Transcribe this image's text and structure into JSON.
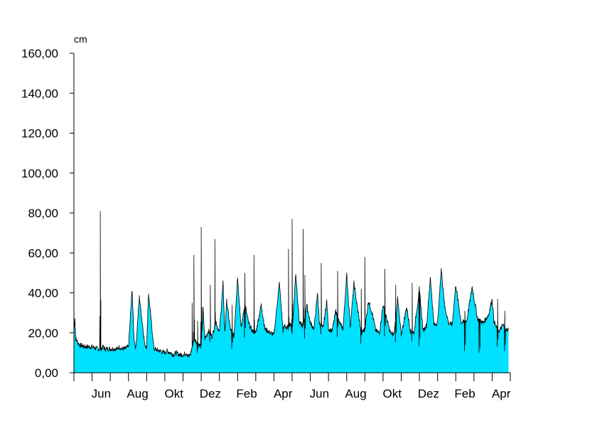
{
  "chart_data": {
    "type": "area",
    "title": "",
    "unit_label": "cm",
    "xlabel": "",
    "ylabel": "",
    "ylim": [
      0,
      160
    ],
    "y_ticks": [
      "0,00",
      "20,00",
      "40,00",
      "60,00",
      "80,00",
      "100,00",
      "120,00",
      "140,00",
      "160,00"
    ],
    "y_tick_values": [
      0,
      20,
      40,
      60,
      80,
      100,
      120,
      140,
      160
    ],
    "x_tick_labels": [
      "Jun",
      "Aug",
      "Okt",
      "Dez",
      "Feb",
      "Apr",
      "Jun",
      "Aug",
      "Okt",
      "Dez",
      "Feb",
      "Apr"
    ],
    "x_range": [
      0,
      24
    ],
    "x_unit": "months from start of May (first year)",
    "x_major_ticks": [
      1,
      3,
      5,
      7,
      9,
      11,
      13,
      15,
      17,
      19,
      21,
      23
    ],
    "grid": false,
    "colors": {
      "fill": "#00e1ff",
      "line": "#000000",
      "axis": "#000000"
    },
    "series": [
      {
        "x": [
          0,
          0.05,
          0.1,
          0.3,
          0.6,
          1.0,
          1.3,
          1.4,
          1.5,
          1.6,
          1.7,
          2.0,
          2.3,
          2.4,
          2.5,
          2.6,
          2.8,
          3.0,
          3.2,
          3.3,
          3.4,
          3.6,
          3.9,
          4.0,
          4.1,
          4.4,
          4.7,
          5.0,
          5.1,
          5.3,
          5.5,
          5.6,
          5.8,
          6.0,
          6.2,
          6.3,
          6.4,
          6.6,
          6.9,
          7.0,
          7.1,
          7.2,
          7.4,
          7.6,
          7.8,
          8.0,
          8.2,
          8.3,
          8.4,
          8.6,
          8.8,
          9.0,
          9.2,
          9.4,
          9.6,
          9.8,
          10.0,
          10.3,
          10.5,
          10.8,
          11.0,
          11.3,
          11.5,
          11.6,
          11.7,
          11.9,
          12.0,
          12.2,
          12.4,
          12.6,
          12.8,
          13.0,
          13.2,
          13.4,
          13.5,
          13.7,
          13.9,
          14.0,
          14.2,
          14.4,
          14.6,
          14.8,
          15.0,
          15.2,
          15.4,
          15.6,
          15.8,
          16.0,
          16.2,
          16.4,
          16.6,
          16.8,
          17.0,
          17.2,
          17.4,
          17.6,
          17.8,
          18.0,
          18.3,
          18.5,
          18.7,
          19.0,
          19.2,
          19.4,
          19.6,
          19.8,
          20.0,
          20.2,
          20.4,
          20.6,
          20.8,
          21.0,
          21.3,
          21.6,
          21.9,
          22.2,
          22.5,
          22.8,
          23.0,
          23.1,
          23.2,
          23.4,
          23.6,
          23.8,
          23.9
        ],
        "y": [
          20,
          28,
          17,
          14,
          13,
          13,
          12,
          12,
          12,
          13,
          12,
          12,
          12,
          12,
          13,
          12,
          12,
          13,
          42,
          18,
          12,
          38,
          14,
          13,
          40,
          12,
          11,
          10,
          11,
          10,
          9,
          10,
          9,
          9,
          10,
          8,
          9,
          17,
          14,
          13,
          32,
          17,
          21,
          18,
          26,
          20,
          45,
          20,
          36,
          22,
          18,
          48,
          22,
          35,
          25,
          21,
          20,
          34,
          22,
          20,
          19,
          45,
          21,
          24,
          22,
          25,
          20,
          50,
          25,
          23,
          34,
          25,
          22,
          40,
          25,
          22,
          36,
          22,
          21,
          31,
          25,
          22,
          49,
          23,
          45,
          32,
          20,
          22,
          36,
          30,
          21,
          20,
          34,
          27,
          20,
          19,
          37,
          19,
          33,
          21,
          20,
          42,
          21,
          24,
          48,
          24,
          25,
          52,
          33,
          25,
          24,
          44,
          25,
          26,
          43,
          27,
          25,
          29,
          37,
          26,
          23,
          21,
          24,
          21,
          22
        ],
        "peaks": [
          {
            "x": 1.45,
            "y": 81
          },
          {
            "x": 6.6,
            "y": 59
          },
          {
            "x": 6.8,
            "y": 26
          },
          {
            "x": 6.5,
            "y": 35
          },
          {
            "x": 7.0,
            "y": 73
          },
          {
            "x": 7.5,
            "y": 44
          },
          {
            "x": 7.75,
            "y": 67
          },
          {
            "x": 8.7,
            "y": 34
          },
          {
            "x": 9.4,
            "y": 50
          },
          {
            "x": 9.9,
            "y": 59
          },
          {
            "x": 11.8,
            "y": 62
          },
          {
            "x": 12.0,
            "y": 77
          },
          {
            "x": 12.6,
            "y": 72
          },
          {
            "x": 12.7,
            "y": 49
          },
          {
            "x": 13.6,
            "y": 55
          },
          {
            "x": 14.5,
            "y": 51
          },
          {
            "x": 15.8,
            "y": 42
          },
          {
            "x": 16.0,
            "y": 58
          },
          {
            "x": 17.1,
            "y": 52
          },
          {
            "x": 17.7,
            "y": 44
          },
          {
            "x": 18.6,
            "y": 45
          },
          {
            "x": 19.0,
            "y": 38
          },
          {
            "x": 21.5,
            "y": 31
          },
          {
            "x": 22.3,
            "y": 27
          },
          {
            "x": 23.3,
            "y": 37
          },
          {
            "x": 23.7,
            "y": 31
          }
        ]
      }
    ]
  }
}
